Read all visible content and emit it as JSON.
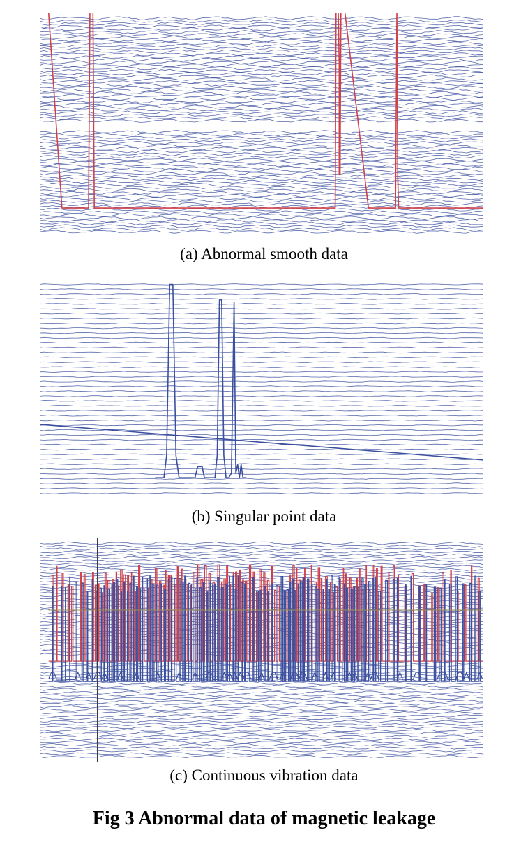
{
  "figure": {
    "title": "Fig 3 Abnormal data of magnetic leakage"
  },
  "colors": {
    "trace": "#3b4f9e",
    "abnormal": "#d0404a",
    "guide": "#3a3a4a",
    "band": "#ffffff",
    "background": "#ffffff"
  },
  "chart_data": [
    {
      "type": "line",
      "caption": "(a) Abnormal smooth data",
      "title": "",
      "xlabel": "",
      "ylabel": "",
      "xlim": [
        0,
        100
      ],
      "ylim": [
        0,
        100
      ],
      "grid": false,
      "legend": "none",
      "trace_count": 78,
      "trace_style": "dense stacked blue traces with small ripple",
      "blank_bands": [
        [
          47,
          51
        ]
      ],
      "series": [
        {
          "color": "red",
          "x": [
            2,
            5,
            11,
            11.3,
            12,
            12.3,
            66.6,
            66.8,
            67.3,
            67.5,
            67.5,
            67.7,
            67.9,
            68.1,
            68.8,
            74.1,
            74.5,
            80.2,
            80.5,
            80.7,
            80.9,
            100
          ],
          "y": [
            100,
            13,
            13,
            100,
            100,
            13,
            13,
            100,
            100,
            78,
            28,
            28,
            100,
            100,
            100,
            13,
            13,
            13,
            100,
            27,
            13,
            13
          ]
        }
      ]
    },
    {
      "type": "line",
      "caption": "(b) Singular point data",
      "title": "",
      "xlabel": "",
      "ylabel": "",
      "xlim": [
        0,
        100
      ],
      "ylim": [
        0,
        100
      ],
      "grid": false,
      "legend": "none",
      "trace_count": 44,
      "trace_style": "stacked blue baseline traces",
      "series": [
        {
          "color": "blue",
          "x": [
            0,
            100
          ],
          "y": [
            34,
            18
          ]
        },
        {
          "color": "blue",
          "x": [
            26,
            28,
            28.6,
            29.3,
            30,
            30.7,
            31.4,
            33,
            35,
            35.6,
            36.1,
            36.6,
            37.1,
            38.5,
            39.5,
            40,
            40.5,
            41,
            41.5,
            42,
            42.6,
            43.2,
            43.8,
            44.2,
            44.6,
            45,
            45.4,
            45.8,
            46.2,
            46.6
          ],
          "y": [
            10,
            10,
            20,
            97,
            97,
            20,
            10,
            10,
            10,
            15,
            15,
            15,
            10,
            10,
            10,
            20,
            90,
            90,
            20,
            10,
            10,
            12,
            89,
            12,
            16,
            10,
            16,
            10,
            10,
            10
          ]
        }
      ]
    },
    {
      "type": "line",
      "caption": "(c) Continuous vibration data",
      "title": "",
      "xlabel": "",
      "ylabel": "",
      "xlim": [
        0,
        100
      ],
      "ylim": [
        0,
        100
      ],
      "grid": false,
      "legend": "none",
      "trace_count": 74,
      "trace_style": "stacked blue traces with dense blue and red square-wave bursts",
      "blank_bands": [
        [
          44,
          47
        ]
      ],
      "guides": {
        "vertical_x": 13,
        "vertical_y_range": [
          0,
          100
        ],
        "horizontal_y": 67.7,
        "horizontal_x_range": [
          2,
          100
        ]
      },
      "vibration_region": {
        "x_range": [
          2,
          100
        ],
        "dense_x_range": [
          11,
          76
        ],
        "blue_pulse": {
          "low": 36,
          "high": 83,
          "mid": 65,
          "count": 170
        },
        "red_pulse": {
          "low": 45,
          "high": 88,
          "count": 130
        },
        "lower_blue_wiggle_y": 37
      }
    }
  ]
}
